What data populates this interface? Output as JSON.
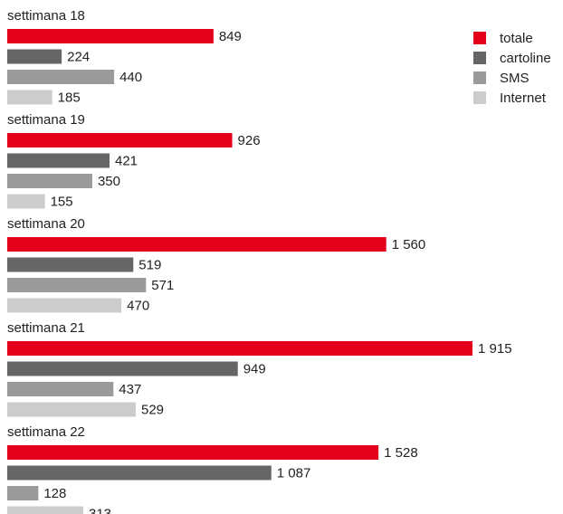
{
  "chart_data": {
    "type": "bar",
    "orientation": "horizontal",
    "categories": [
      "settimana 18",
      "settimana 19",
      "settimana 20",
      "settimana 21",
      "settimana 22"
    ],
    "series": [
      {
        "name": "totale",
        "color": "#e2001a",
        "values": [
          849,
          926,
          1560,
          1915,
          1528
        ],
        "value_labels": [
          "849",
          "926",
          "1 560",
          "1 915",
          "1 528"
        ]
      },
      {
        "name": "cartoline",
        "color": "#666666",
        "values": [
          224,
          421,
          519,
          949,
          1087
        ],
        "value_labels": [
          "224",
          "421",
          "519",
          "949",
          "1 087"
        ]
      },
      {
        "name": "SMS",
        "color": "#9a9a9a",
        "values": [
          440,
          350,
          571,
          437,
          128
        ]
      },
      {
        "name": "Internet",
        "color": "#cccccc",
        "values": [
          185,
          155,
          470,
          529,
          313
        ]
      }
    ],
    "legend": "top-right"
  }
}
